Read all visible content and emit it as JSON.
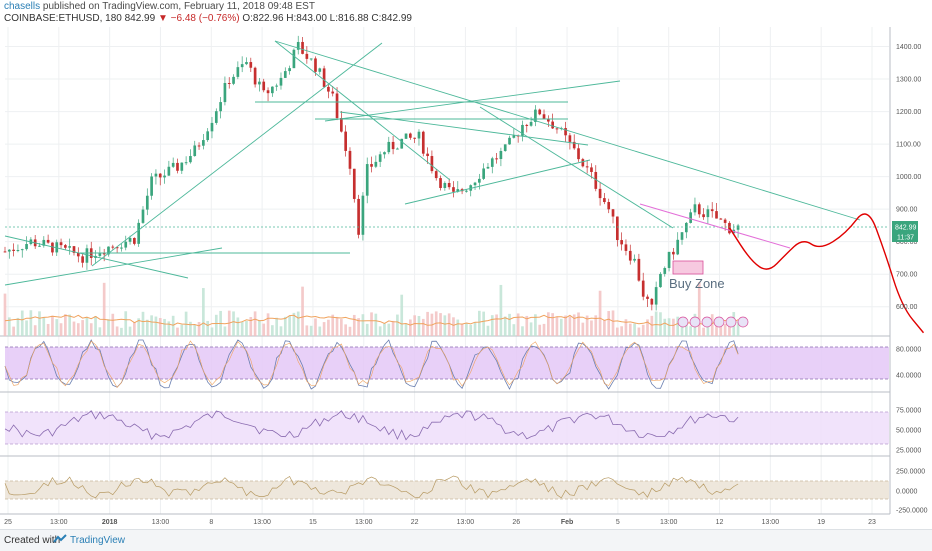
{
  "header": {
    "author": "chasells",
    "published_text": "published on TradingView.com, February 11, 2018 09:48 EST",
    "symbol": "COINBASE:ETHUSD, 180",
    "last_price": "842.99",
    "change": "−6.48 (−0.76%)",
    "ohlc": "O:822.96 H:843.00 L:816.88 C:842.99"
  },
  "footer": {
    "created_with": "Created with",
    "brand": "TradingView"
  },
  "chart_data": [
    {
      "type": "line",
      "name": "price",
      "yticks": [
        600,
        700,
        800,
        900,
        1000,
        1100,
        1200,
        1300,
        1400
      ],
      "ytick_labels": [
        "600.00",
        "700.00",
        "800.00",
        "900.00",
        "1000.00",
        "1100.00",
        "1200.00",
        "1300.00",
        "1400.00"
      ],
      "ylim": [
        510,
        1460
      ],
      "current_price_label": "842.99",
      "countdown_label": "11:37",
      "annotation": "Buy Zone",
      "x_index_max": 170,
      "x_forecast_max": 205,
      "series": [
        {
          "values": [
            [
              0,
              770
            ],
            [
              6,
              800
            ],
            [
              12,
              780
            ],
            [
              18,
              755
            ],
            [
              24,
              785
            ],
            [
              30,
              810
            ],
            [
              34,
              985
            ],
            [
              40,
              1030
            ],
            [
              44,
              1080
            ],
            [
              48,
              1180
            ],
            [
              52,
              1300
            ],
            [
              56,
              1350
            ],
            [
              60,
              1250
            ],
            [
              64,
              1300
            ],
            [
              68,
              1400
            ],
            [
              72,
              1340
            ],
            [
              76,
              1240
            ],
            [
              80,
              1040
            ],
            [
              82,
              840
            ],
            [
              84,
              1020
            ],
            [
              88,
              1080
            ],
            [
              92,
              1110
            ],
            [
              96,
              1120
            ],
            [
              100,
              1000
            ],
            [
              104,
              940
            ],
            [
              108,
              980
            ],
            [
              112,
              1040
            ],
            [
              116,
              1080
            ],
            [
              120,
              1160
            ],
            [
              124,
              1200
            ],
            [
              128,
              1150
            ],
            [
              132,
              1080
            ],
            [
              136,
              1000
            ],
            [
              140,
              900
            ],
            [
              142,
              820
            ],
            [
              144,
              780
            ],
            [
              146,
              740
            ],
            [
              148,
              640
            ],
            [
              150,
              590
            ],
            [
              152,
              700
            ],
            [
              156,
              800
            ],
            [
              160,
              900
            ],
            [
              164,
              880
            ],
            [
              168,
              843
            ]
          ]
        },
        {
          "name": "forecast",
          "values": [
            [
              168,
              843
            ],
            [
              173,
              740
            ],
            [
              177,
              705
            ],
            [
              181,
              760
            ],
            [
              185,
              810
            ],
            [
              189,
              775
            ],
            [
              195,
              825
            ],
            [
              200,
              912
            ],
            [
              204,
              770
            ],
            [
              208,
              600
            ],
            [
              213,
              520
            ]
          ]
        }
      ],
      "x_tick_labels": [
        "25",
        "13:00",
        "2018",
        "13:00",
        "8",
        "13:00",
        "15",
        "13:00",
        "22",
        "13:00",
        "26",
        "Feb",
        "5",
        "13:00",
        "12",
        "13:00",
        "19",
        "23"
      ],
      "x_tick_bold": [
        "2018",
        "Feb"
      ]
    },
    {
      "type": "line",
      "name": "oscillator-1",
      "ytick_labels": [
        "80.0000",
        "40.0000"
      ],
      "bands": [
        80,
        20
      ]
    },
    {
      "type": "line",
      "name": "oscillator-2",
      "ytick_labels": [
        "75.0000",
        "50.0000",
        "25.0000"
      ],
      "bands": [
        70,
        30
      ]
    },
    {
      "type": "line",
      "name": "oscillator-3",
      "ytick_labels": [
        "250.0000",
        "0.0000",
        "-250.0000"
      ],
      "bands": [
        100,
        -100
      ]
    }
  ]
}
